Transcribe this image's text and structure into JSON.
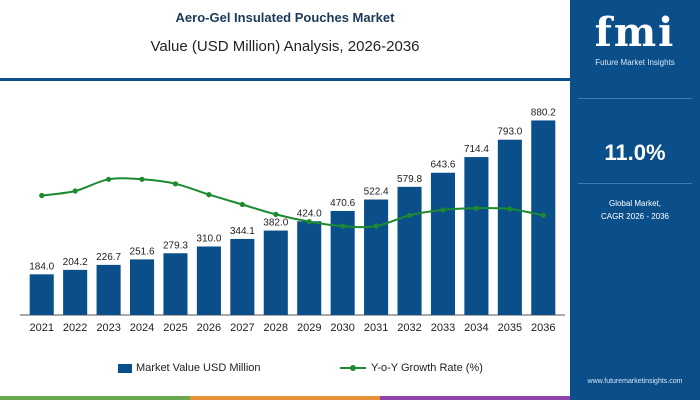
{
  "header": {
    "title": "Aero-Gel Insulated Pouches Market",
    "subtitle": "Value (USD Million) Analysis, 2026-2036"
  },
  "side_panel": {
    "logo_text": "fmi",
    "logo_tagline": "Future Market Insights",
    "cagr_value": "11.0%",
    "cagr_label_line1": "Global Market,",
    "cagr_label_line2": "CAGR 2026 - 2036",
    "url": "www.futuremarketinsights.com"
  },
  "legend": {
    "bar_label": "Market Value USD Million",
    "line_label": "Y-o-Y Growth Rate (%)"
  },
  "colors": {
    "bar": "#0b4f8a",
    "line": "#1c8a2e",
    "panel": "#0b4f8a",
    "strip": [
      "#6aa84f",
      "#e69138",
      "#8e44ad"
    ]
  },
  "chart_data": {
    "type": "bar",
    "categories": [
      "2021",
      "2022",
      "2023",
      "2024",
      "2025",
      "2026",
      "2027",
      "2028",
      "2029",
      "2030",
      "2031",
      "2032",
      "2033",
      "2034",
      "2035",
      "2036"
    ],
    "series": [
      {
        "name": "Market Value USD Million",
        "type": "bar",
        "values": [
          184.0,
          204.2,
          226.7,
          251.6,
          279.3,
          310.0,
          344.1,
          382.0,
          424.0,
          470.6,
          522.4,
          579.8,
          643.6,
          714.4,
          793.0,
          880.2
        ],
        "labels": [
          "184.0",
          "204.2",
          "226.7",
          "251.6",
          "279.3",
          "310.0",
          "344.1",
          "382.0",
          "424.0",
          "470.6",
          "522.4",
          "579.8",
          "643.6",
          "714.4",
          "793.0",
          "880.2"
        ]
      },
      {
        "name": "Y-o-Y Growth Rate (%)",
        "type": "line",
        "values": [
          10.5,
          11.0,
          12.3,
          12.3,
          11.8,
          10.6,
          9.5,
          8.4,
          7.6,
          7.1,
          7.1,
          8.3,
          8.9,
          9.1,
          9.0,
          8.3
        ]
      }
    ],
    "ylim": [
      0,
      950
    ],
    "y2lim": [
      0,
      20
    ],
    "grid": false,
    "legend_position": "bottom"
  }
}
